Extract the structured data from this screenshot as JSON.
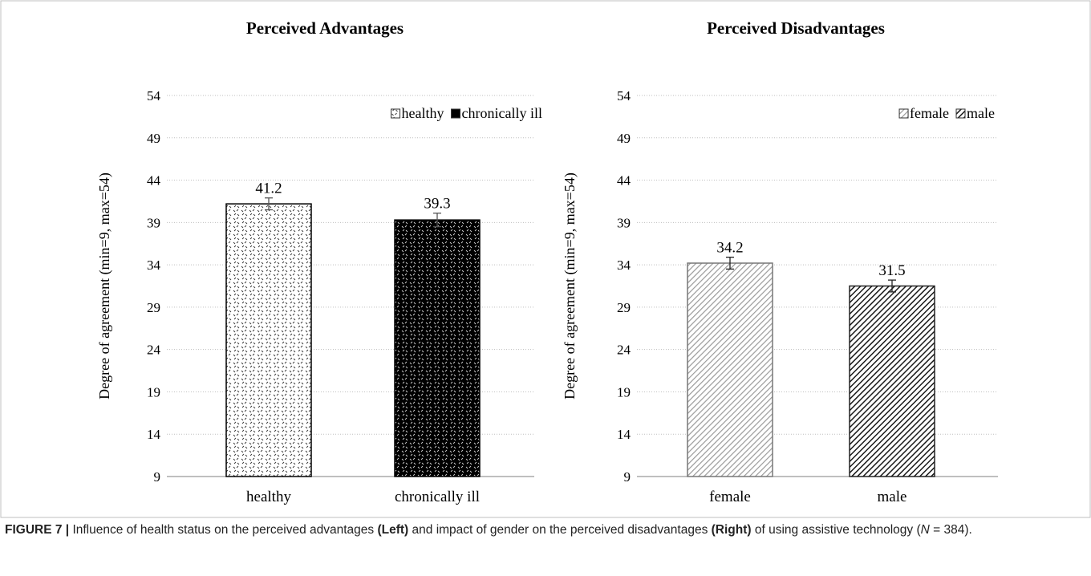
{
  "chart_data": [
    {
      "type": "bar",
      "title": "Perceived Advantages",
      "ylabel": "Degree of agreement (min=9, max=54)",
      "xlabel": "",
      "ylim": [
        9,
        54
      ],
      "yticks": [
        9,
        14,
        19,
        24,
        29,
        34,
        39,
        44,
        49,
        54
      ],
      "categories": [
        "healthy",
        "chronically ill"
      ],
      "values": [
        41.2,
        39.3
      ],
      "data_labels": [
        "41.2",
        "39.3"
      ],
      "error_bars": [
        0.7,
        0.8
      ],
      "legend": {
        "entries": [
          "healthy",
          "chronically ill"
        ],
        "placement": "top-right"
      },
      "grid": true
    },
    {
      "type": "bar",
      "title": "Perceived Disadvantages",
      "ylabel": "Degree of agreement (min=9, max=54)",
      "xlabel": "",
      "ylim": [
        9,
        54
      ],
      "yticks": [
        9,
        14,
        19,
        24,
        29,
        34,
        39,
        44,
        49,
        54
      ],
      "categories": [
        "female",
        "male"
      ],
      "values": [
        34.2,
        31.5
      ],
      "data_labels": [
        "34.2",
        "31.5"
      ],
      "error_bars": [
        0.7,
        0.7
      ],
      "legend": {
        "entries": [
          "female",
          "male"
        ],
        "placement": "top-right"
      },
      "grid": true
    }
  ],
  "caption": {
    "label": "FIGURE 7 |",
    "p1": " Influence of health status on the perceived advantages ",
    "left": "(Left)",
    "p2": " and impact of gender on the perceived disadvantages ",
    "right": "(Right)",
    "p3": " of using assistive technology (",
    "n": "N",
    "p4": " = 384)."
  },
  "colors": {
    "frame": "#bfbfbf",
    "grid": "#bfbfbf",
    "axis": "#7f7f7f",
    "bar_dark": "#000000",
    "bar_light": "#ffffff"
  }
}
